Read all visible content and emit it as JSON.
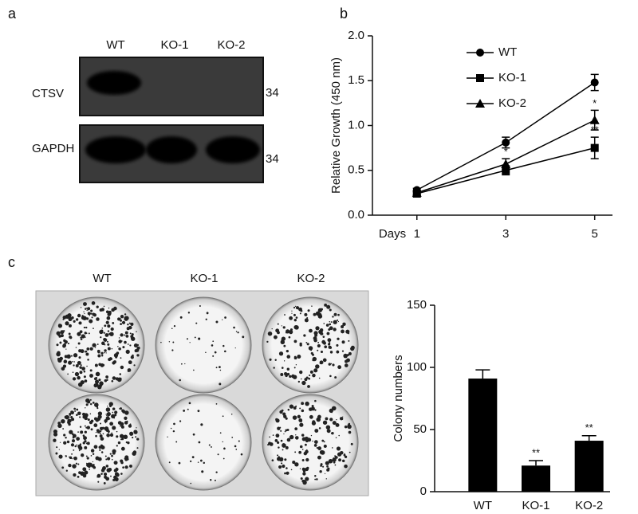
{
  "panel_a": {
    "label": "a",
    "lanes": [
      "WT",
      "KO-1",
      "KO-2"
    ],
    "rows": [
      {
        "name": "CTSV",
        "marker": "34"
      },
      {
        "name": "GAPDH",
        "marker": "34"
      }
    ]
  },
  "panel_b": {
    "label": "b"
  },
  "panel_c": {
    "label": "c",
    "wells": [
      "WT",
      "KO-1",
      "KO-2"
    ]
  },
  "chart_data": [
    {
      "type": "line",
      "x": [
        1,
        3,
        5
      ],
      "xlabel": "Days",
      "ylabel": "Relative Growth (450 nm)",
      "xlim": [
        0,
        5.4
      ],
      "xticks": [
        1,
        3,
        5
      ],
      "ylim": [
        0,
        2.0
      ],
      "yticks": [
        {
          "value": 0,
          "label": "0.0"
        },
        0.5,
        {
          "value": 1,
          "label": "1.0"
        },
        1.5,
        {
          "value": 2,
          "label": "2.0"
        }
      ],
      "legend": "top",
      "series": [
        {
          "name": "WT",
          "marker": "circle",
          "color": "#000000",
          "values": [
            0.28,
            0.81,
            1.48
          ],
          "errors": [
            0.02,
            0.06,
            0.09
          ],
          "significance": [
            null,
            null,
            null
          ]
        },
        {
          "name": "KO-1",
          "marker": "square",
          "color": "#000000",
          "values": [
            0.24,
            0.5,
            0.75
          ],
          "errors": [
            0.02,
            0.05,
            0.12
          ],
          "significance": [
            null,
            null,
            "**"
          ]
        },
        {
          "name": "KO-2",
          "marker": "triangle",
          "color": "#000000",
          "values": [
            0.25,
            0.57,
            1.06
          ],
          "errors": [
            0.02,
            0.06,
            0.11
          ],
          "significance": [
            null,
            "*",
            "*"
          ]
        }
      ]
    },
    {
      "type": "bar",
      "categories": [
        "WT",
        "KO-1",
        "KO-2"
      ],
      "values": [
        91,
        21,
        41
      ],
      "errors": [
        7,
        4,
        4
      ],
      "significance": [
        null,
        "**",
        "**"
      ],
      "ylabel": "Colony numbers",
      "color": "#000000",
      "ylim": [
        0,
        150
      ],
      "yticks": [
        0,
        50,
        100,
        150
      ]
    }
  ]
}
